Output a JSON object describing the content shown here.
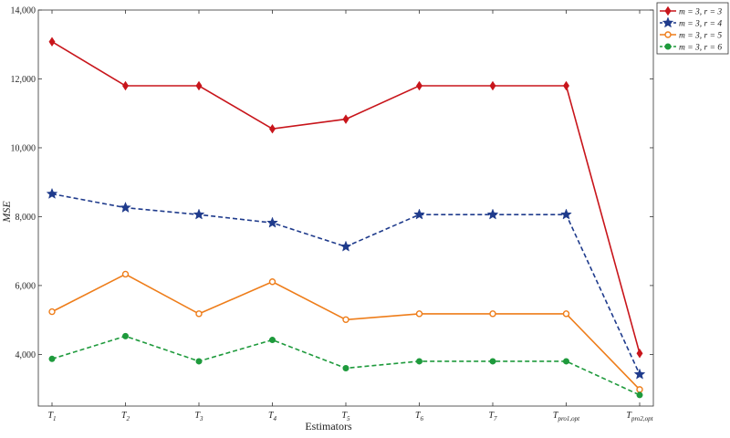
{
  "chart_data": {
    "type": "line",
    "title": "",
    "xlabel": "Estimators",
    "ylabel": "MSE",
    "categories": [
      {
        "base": "T",
        "sub": "1"
      },
      {
        "base": "T",
        "sub": "2"
      },
      {
        "base": "T",
        "sub": "3"
      },
      {
        "base": "T",
        "sub": "4"
      },
      {
        "base": "T",
        "sub": "5"
      },
      {
        "base": "T",
        "sub": "6"
      },
      {
        "base": "T",
        "sub": "7"
      },
      {
        "base": "T",
        "sub": "pro1,opt"
      },
      {
        "base": "T",
        "sub": "pro2,opt"
      }
    ],
    "ylim": [
      2500,
      14000
    ],
    "yticks": [
      4000,
      6000,
      8000,
      10000,
      12000,
      14000
    ],
    "ytick_labels": [
      "4,000",
      "6,000",
      "8,000",
      "10,000",
      "12,000",
      "14,000"
    ],
    "grid": false,
    "legend_position": "top-right",
    "series": [
      {
        "name": "m = 3, r = 3",
        "color": "#c8151b",
        "dash": "solid",
        "marker": "diamond",
        "values": [
          13080,
          11800,
          11800,
          10550,
          10830,
          11800,
          11800,
          11800,
          4030
        ]
      },
      {
        "name": "m = 3, r = 4",
        "color": "#1f3b8c",
        "dash": "dashed",
        "marker": "star",
        "values": [
          8660,
          8260,
          8060,
          7820,
          7130,
          8060,
          8060,
          8060,
          3420
        ]
      },
      {
        "name": "m = 3, r = 5",
        "color": "#ee7d1a",
        "dash": "solid",
        "marker": "circle",
        "values": [
          5240,
          6330,
          5180,
          6110,
          5010,
          5180,
          5180,
          5180,
          2980
        ]
      },
      {
        "name": "m = 3, r = 6",
        "color": "#1e9a3c",
        "dash": "dashed",
        "marker": "dot",
        "values": [
          3870,
          4530,
          3800,
          4420,
          3600,
          3800,
          3800,
          3800,
          2820
        ]
      }
    ]
  }
}
